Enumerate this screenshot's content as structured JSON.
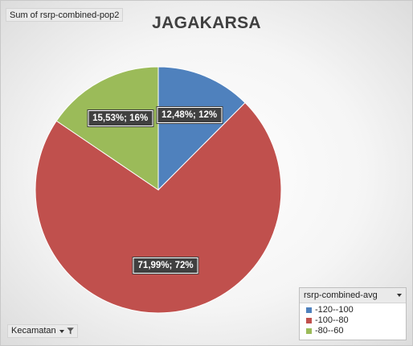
{
  "value_field_button": "Sum of rsrp-combined-pop2",
  "axis_field_button": "Kecamatan",
  "legend_field_button": "rsrp-combined-avg",
  "icons": {
    "axis_field": [
      "dropdown-arrow-icon",
      "filter-funnel-icon"
    ],
    "legend_field": "dropdown-arrow-icon"
  },
  "chart_data": {
    "type": "pie",
    "title": "JAGAKARSA",
    "categories": [
      "-120--100",
      "-100--80",
      "-80--60"
    ],
    "values": [
      12.48,
      71.99,
      15.53
    ],
    "data_labels": [
      "12,48%; 12%",
      "71,99%; 72%",
      "15,53%; 16%"
    ],
    "colors": [
      "#4f81bd",
      "#c0504d",
      "#9bbb59"
    ],
    "legend": {
      "title": "rsrp-combined-avg",
      "entries": [
        "-120--100",
        "-100--80",
        "-80--60"
      ],
      "placement": "bottom-right"
    }
  }
}
